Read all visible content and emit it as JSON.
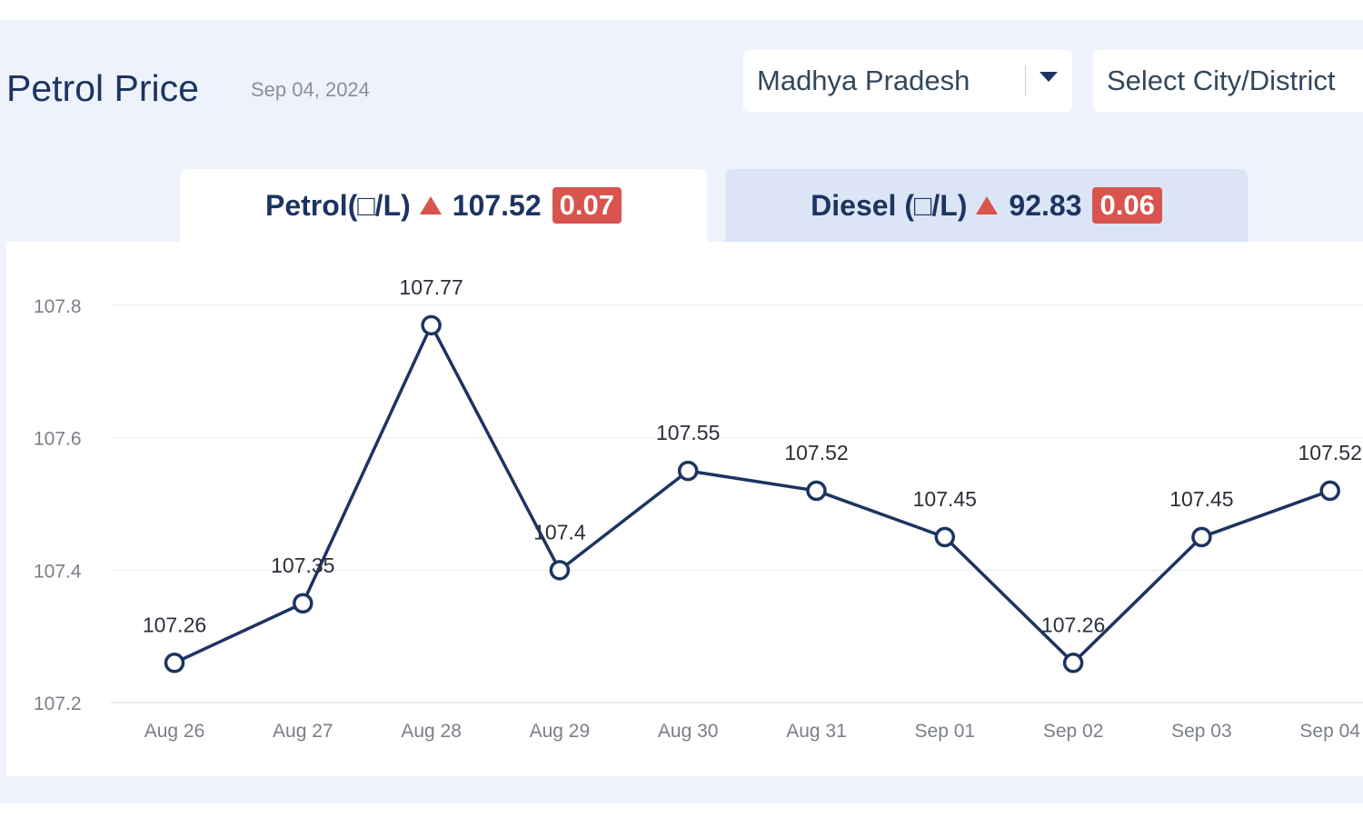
{
  "header": {
    "title": "Petrol Price",
    "date": "Sep 04, 2024"
  },
  "filters": {
    "state": "Madhya Pradesh",
    "city_placeholder": "Select City/District"
  },
  "tabs": [
    {
      "label": "Petrol(□/L)",
      "price": "107.52",
      "change": "0.07",
      "selected": true
    },
    {
      "label": "Diesel (□/L)",
      "price": "92.83",
      "change": "0.06",
      "selected": false
    }
  ],
  "icons": {
    "change_up": "triangle-up-icon",
    "dropdown": "chevron-down-icon"
  },
  "colors": {
    "title": "#1d3461",
    "line": "#1d3461",
    "up": "#d9534f",
    "background": "#eef3fb",
    "tab_inactive": "#dbe5f6"
  },
  "chart_data": {
    "type": "line",
    "title": "",
    "xlabel": "",
    "ylabel": "",
    "categories": [
      "Aug 26",
      "Aug 27",
      "Aug 28",
      "Aug 29",
      "Aug 30",
      "Aug 31",
      "Sep 01",
      "Sep 02",
      "Sep 03",
      "Sep 04"
    ],
    "series": [
      {
        "values": [
          107.26,
          107.35,
          107.77,
          107.4,
          107.55,
          107.52,
          107.45,
          107.26,
          107.45,
          107.52
        ]
      }
    ],
    "ylim": [
      107.2,
      107.8
    ],
    "yticks": [
      107.2,
      107.4,
      107.6,
      107.8
    ],
    "grid": true,
    "data_labels": true,
    "legend": "none"
  }
}
